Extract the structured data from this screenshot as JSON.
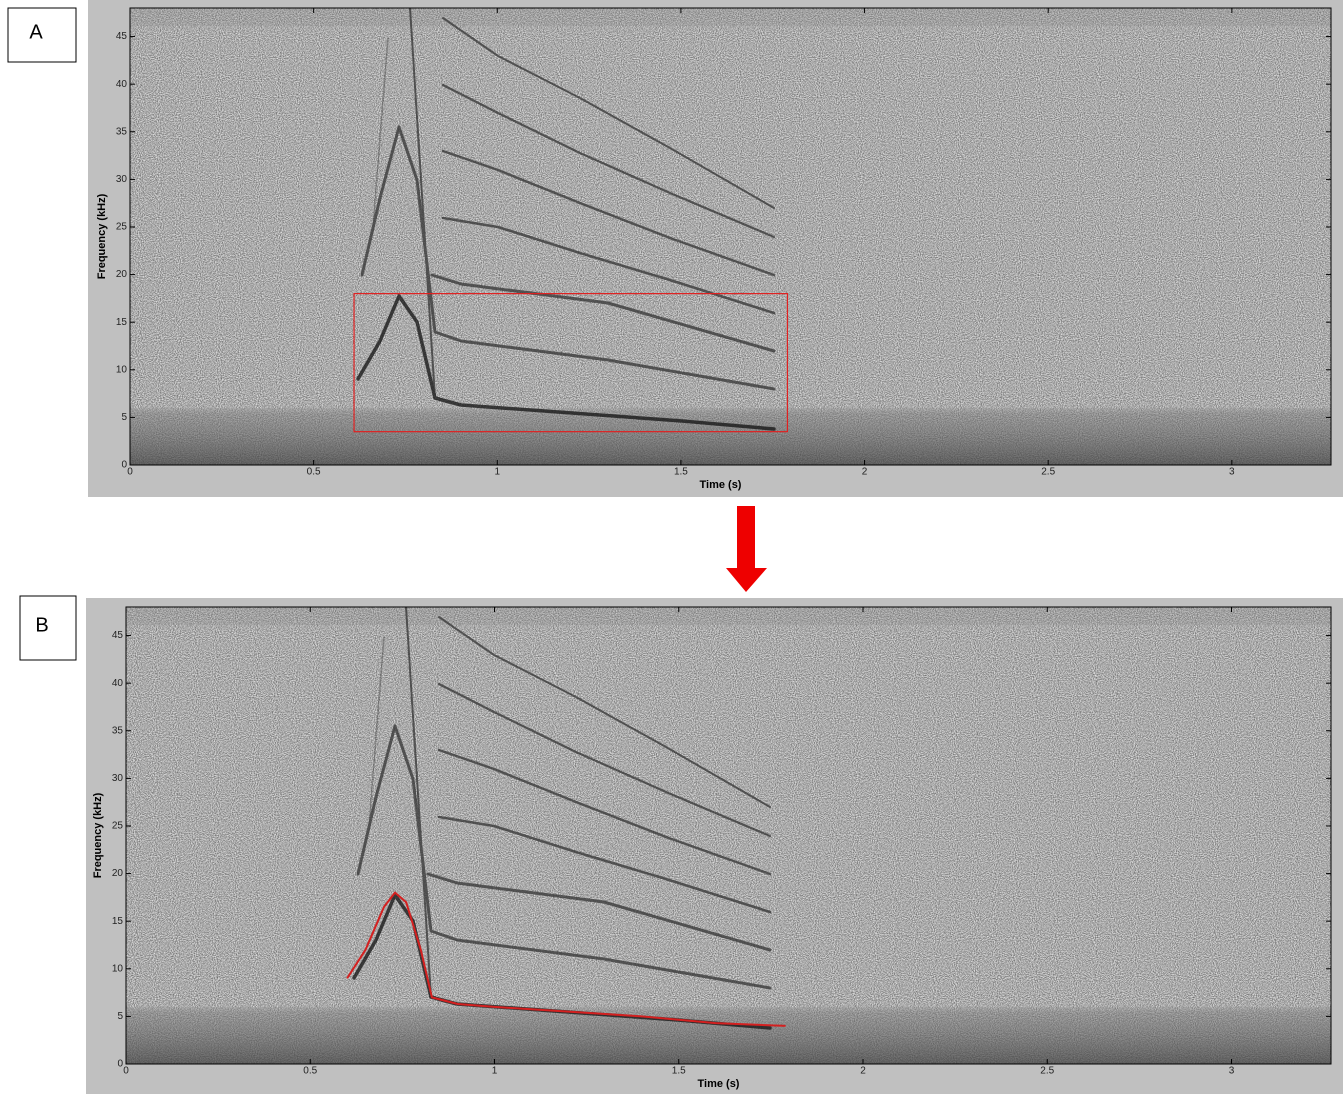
{
  "chart_data": [
    {
      "type": "spectrogram",
      "panel_label": "A",
      "xlabel": "Time (s)",
      "ylabel": "Frequency (kHz)",
      "xlim": [
        0,
        3.27
      ],
      "ylim": [
        0,
        48
      ],
      "xticks": [
        0,
        0.5,
        1,
        1.5,
        2,
        2.5,
        3
      ],
      "yticks": [
        0,
        5,
        10,
        15,
        20,
        25,
        30,
        35,
        40,
        45
      ],
      "selection": {
        "color": "#e02020",
        "x": [
          0.61,
          1.79
        ],
        "y": [
          3.5,
          18
        ]
      }
    },
    {
      "type": "spectrogram",
      "panel_label": "B",
      "xlabel": "Time (s)",
      "ylabel": "Frequency (kHz)",
      "xlim": [
        0,
        3.27
      ],
      "ylim": [
        0,
        48
      ],
      "xticks": [
        0,
        0.5,
        1,
        1.5,
        2,
        2.5,
        3
      ],
      "yticks": [
        0,
        5,
        10,
        15,
        20,
        25,
        30,
        35,
        40,
        45
      ],
      "series": [
        {
          "color": "#d42020",
          "x": [
            0.6,
            0.65,
            0.7,
            0.73,
            0.76,
            0.8,
            0.83,
            0.9,
            1.0,
            1.2,
            1.4,
            1.6,
            1.79
          ],
          "values": [
            9,
            12,
            16.5,
            18,
            17,
            12,
            7,
            6.3,
            6,
            5.5,
            5,
            4.3,
            4
          ]
        }
      ]
    }
  ]
}
